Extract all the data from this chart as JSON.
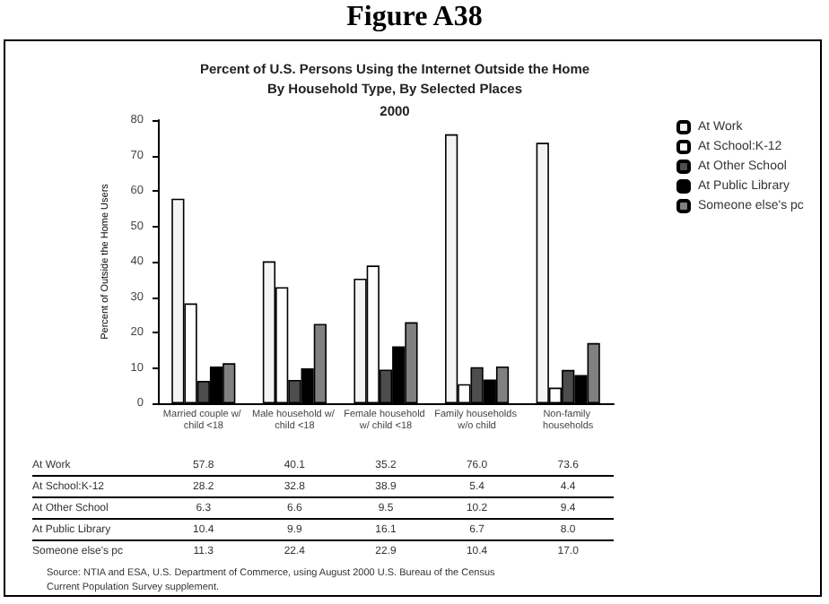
{
  "chart_data": {
    "type": "bar",
    "title": "Percent of U.S. Persons Using the Internet Outside the Home\nBy Household Type, By Selected Places",
    "subtitle": "2000",
    "ylabel": "Percent of Outside the Home Users",
    "categories": [
      "Married couple w/ child <18",
      "Male household w/ child <18",
      "Female household w/ child <18",
      "Family households w/o child",
      "Non-family households"
    ],
    "series": [
      {
        "name": "At Work",
        "color": "#f4f4f4",
        "values": [
          57.8,
          40.1,
          35.2,
          76.0,
          73.6
        ],
        "value_labels": [
          "57.8",
          "40.1",
          "35.2",
          "76.0",
          "73.6"
        ]
      },
      {
        "name": "At School:K-12",
        "color": "#ffffff",
        "values": [
          28.2,
          32.8,
          38.9,
          5.4,
          4.4
        ],
        "value_labels": [
          "28.2",
          "32.8",
          "38.9",
          "5.4",
          "4.4"
        ]
      },
      {
        "name": "At Other School",
        "color": "#4d4d4d",
        "values": [
          6.3,
          6.6,
          9.5,
          10.2,
          9.4
        ],
        "value_labels": [
          "6.3",
          "6.6",
          "9.5",
          "10.2",
          "9.4"
        ]
      },
      {
        "name": "At Public Library",
        "color": "#000000",
        "values": [
          10.4,
          9.9,
          16.1,
          6.7,
          8.0
        ],
        "value_labels": [
          "10.4",
          "9.9",
          "16.1",
          "6.7",
          "8.0"
        ]
      },
      {
        "name": "Someone else's pc",
        "color": "#808080",
        "values": [
          11.3,
          22.4,
          22.9,
          10.4,
          17.0
        ],
        "value_labels": [
          "11.3",
          "22.4",
          "22.9",
          "10.4",
          "17.0"
        ]
      }
    ],
    "ylim": [
      0,
      80
    ],
    "yticks": [
      0,
      10,
      20,
      30,
      40,
      50,
      60,
      70,
      80
    ],
    "legend": "top right",
    "annotations": [
      "Figure A38",
      "Source:  NTIA and ESA, U.S. Department of Commerce, using August 2000 U.S. Bureau of the Census\nCurrent Population Survey supplement."
    ]
  }
}
